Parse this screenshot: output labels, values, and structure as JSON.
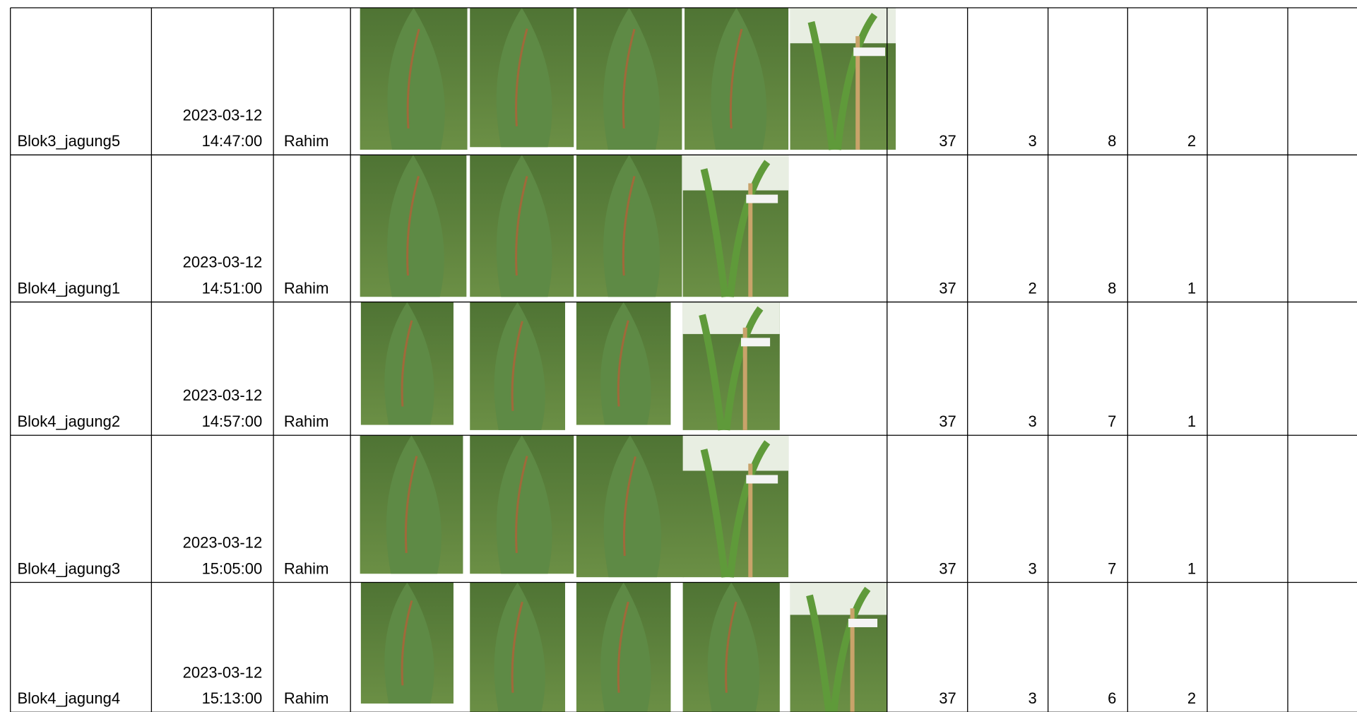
{
  "rows": [
    {
      "id": "Blok3_jagung5",
      "date": "2023-03-12",
      "time": "14:47:00",
      "observer": "Rahim",
      "values": [
        37,
        3,
        8,
        2
      ]
    },
    {
      "id": "Blok4_jagung1",
      "date": "2023-03-12",
      "time": "14:51:00",
      "observer": "Rahim",
      "values": [
        37,
        2,
        8,
        1
      ]
    },
    {
      "id": "Blok4_jagung2",
      "date": "2023-03-12",
      "time": "14:57:00",
      "observer": "Rahim",
      "values": [
        37,
        3,
        7,
        1
      ]
    },
    {
      "id": "Blok4_jagung3",
      "date": "2023-03-12",
      "time": "15:05:00",
      "observer": "Rahim",
      "values": [
        37,
        3,
        7,
        1
      ]
    },
    {
      "id": "Blok4_jagung4",
      "date": "2023-03-12",
      "time": "15:13:00",
      "observer": "Rahim",
      "values": [
        37,
        3,
        6,
        2
      ]
    }
  ]
}
